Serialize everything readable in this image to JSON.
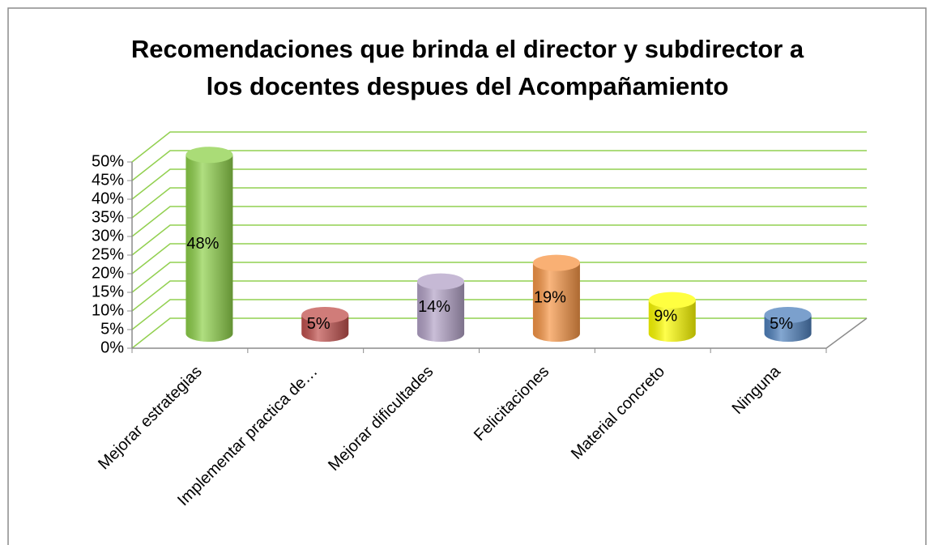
{
  "chart_data": {
    "type": "bar3d",
    "title": "Recomendaciones que brinda el director y subdirector a los docentes despues del Acompañamiento",
    "categories": [
      "Mejorar estrategias",
      "Implementar practica de…",
      "Mejorar dificultades",
      "Felicitaciones",
      "Material concreto",
      "Ninguna"
    ],
    "values": [
      48,
      5,
      14,
      19,
      9,
      5
    ],
    "value_labels": [
      "48%",
      "5%",
      "14%",
      "19%",
      "9%",
      "5%"
    ],
    "colors": [
      "#8ed14a",
      "#c0504d",
      "#b3a2c7",
      "#f79646",
      "#ffff00",
      "#4f81bd"
    ],
    "ylim": [
      0,
      50
    ],
    "yticks": [
      {
        "value": 0,
        "label": "0%"
      },
      {
        "value": 5,
        "label": "5%"
      },
      {
        "value": 10,
        "label": "10%"
      },
      {
        "value": 15,
        "label": "15%"
      },
      {
        "value": 20,
        "label": "20%"
      },
      {
        "value": 25,
        "label": "25%"
      },
      {
        "value": 30,
        "label": "30%"
      },
      {
        "value": 35,
        "label": "35%"
      },
      {
        "value": 40,
        "label": "40%"
      },
      {
        "value": 45,
        "label": "45%"
      },
      {
        "value": 50,
        "label": "50%"
      }
    ],
    "grid": true,
    "grid_color": "#92d050"
  }
}
